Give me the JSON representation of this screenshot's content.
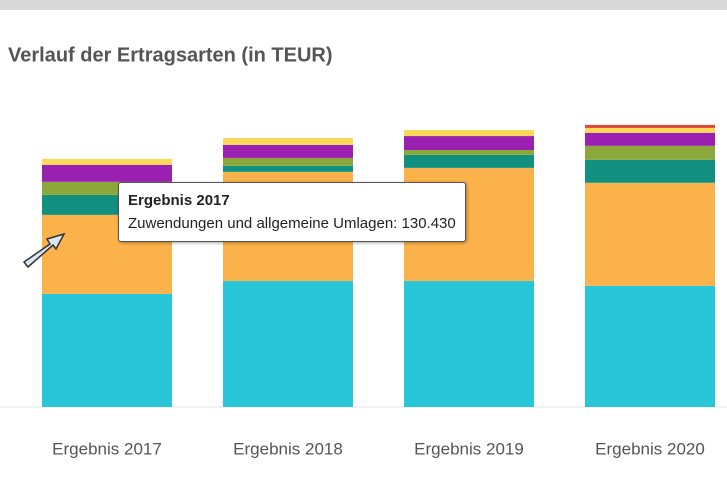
{
  "chart_data": {
    "type": "stacked-bar",
    "title": "Verlauf der Ertragsarten (in TEUR)",
    "categories": [
      "Ergebnis 2017",
      "Ergebnis 2018",
      "Ergebnis 2019",
      "Ergebnis 2020"
    ],
    "series": [
      {
        "color": "#29c5d9",
        "values": [
          186600,
          208000,
          208000,
          200000
        ]
      },
      {
        "color": "#fbb24a",
        "values": [
          130430,
          180000,
          186600,
          170000
        ]
      },
      {
        "color": "#12907f",
        "values": [
          33000,
          10000,
          21500,
          38000
        ]
      },
      {
        "color": "#8da83a",
        "values": [
          21500,
          13000,
          8000,
          23000
        ]
      },
      {
        "color": "#9b1fb0",
        "values": [
          28000,
          21500,
          23000,
          21500
        ]
      },
      {
        "color": "#f9d95a",
        "values": [
          10000,
          11500,
          10000,
          8000
        ]
      },
      {
        "color": "#e0483a",
        "values": [
          0,
          0,
          0,
          5000
        ]
      }
    ],
    "ylim": [
      0,
      500000
    ],
    "tooltip": {
      "text": "Zuwendungen und allgemeine Umlagen: 130.430"
    }
  }
}
